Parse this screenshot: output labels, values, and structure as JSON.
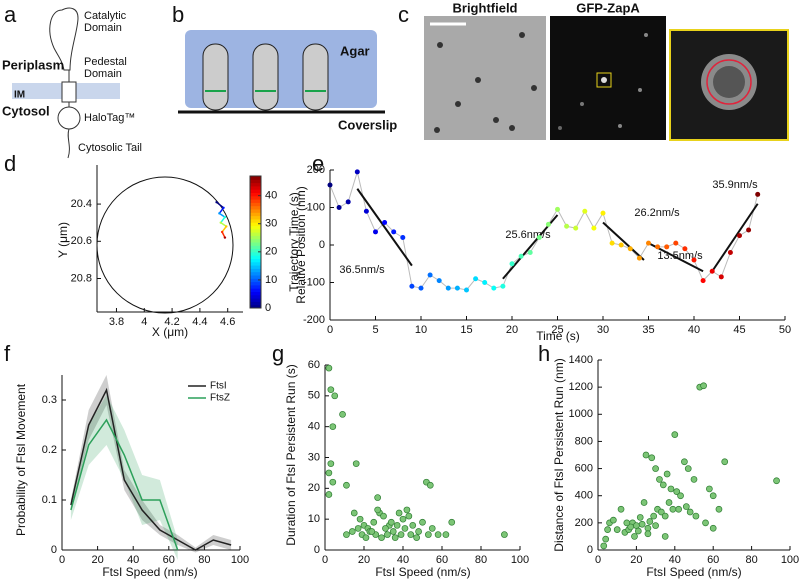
{
  "panel_labels": [
    "a",
    "b",
    "c",
    "d",
    "e",
    "f",
    "g",
    "h"
  ],
  "diagram_a": {
    "catalytic": [
      "Catalytic",
      "Domain"
    ],
    "periplasm": "Periplasm",
    "pedestal": [
      "Pedestal",
      "Domain"
    ],
    "im": "IM",
    "cytosol": "Cytosol",
    "halotag": "HaloTag™",
    "tail": "Cytosolic Tail"
  },
  "diagram_b": {
    "agar": "Agar",
    "coverslip": "Coverslip"
  },
  "images_c": {
    "brightfield": "Brightfield",
    "gfp": "GFP-ZapA"
  },
  "chart_data": [
    {
      "type": "trajectory",
      "x_label": "X (μm)",
      "y_label": "Y (μm)",
      "x": [
        4.52,
        4.57,
        4.54,
        4.58,
        4.55,
        4.59,
        4.56,
        4.58
      ],
      "y": [
        20.39,
        20.42,
        20.45,
        20.47,
        20.5,
        20.52,
        20.55,
        20.58
      ],
      "t": [
        0,
        7,
        13,
        19,
        26,
        32,
        39,
        45
      ],
      "xlim": [
        3.66,
        4.71
      ],
      "xticks": [
        3.8,
        4,
        4.2,
        4.4,
        4.6
      ],
      "ylim": [
        20.19,
        20.98
      ],
      "yticks": [
        20.4,
        20.6,
        20.8
      ],
      "yreverse": true,
      "colormap": "jet",
      "colorbar": {
        "label": "Trajectory Time (s)",
        "lim": [
          0,
          47
        ],
        "ticks": [
          0,
          10,
          20,
          30,
          40
        ]
      }
    },
    {
      "type": "timeseries",
      "x_label": "Time (s)",
      "y_label": "Relative Position (nm)",
      "x": [
        0,
        1,
        2,
        3,
        4,
        5,
        6,
        7,
        8,
        9,
        10,
        11,
        12,
        13,
        14,
        15,
        16,
        17,
        18,
        19,
        20,
        21,
        22,
        23,
        24,
        25,
        26,
        27,
        28,
        29,
        30,
        31,
        32,
        33,
        34,
        35,
        36,
        37,
        38,
        39,
        40,
        41,
        42,
        43,
        44,
        45,
        46,
        47
      ],
      "values": [
        160,
        100,
        115,
        195,
        90,
        35,
        60,
        35,
        20,
        -110,
        -115,
        -80,
        -95,
        -115,
        -115,
        -120,
        -90,
        -100,
        -115,
        -110,
        -50,
        -30,
        -20,
        20,
        55,
        95,
        50,
        45,
        90,
        45,
        85,
        5,
        0,
        -10,
        -35,
        5,
        -5,
        -5,
        5,
        -10,
        -40,
        -95,
        -70,
        -85,
        -20,
        25,
        40,
        135
      ],
      "colormap": "jet",
      "clim": [
        0,
        47
      ],
      "line_color": "#bbbbbb",
      "fits": [
        {
          "x1": 3,
          "y1": 150,
          "x2": 9,
          "y2": -55,
          "label": "36.5nm/s"
        },
        {
          "x1": 19,
          "y1": -90,
          "x2": 25,
          "y2": 80,
          "label": "25.6nm/s"
        },
        {
          "x1": 30,
          "y1": 60,
          "x2": 34.5,
          "y2": -40,
          "label": "26.2nm/s"
        },
        {
          "x1": 35,
          "y1": 5,
          "x2": 41,
          "y2": -70,
          "label": "13.5nm/s"
        },
        {
          "x1": 42,
          "y1": -70,
          "x2": 47,
          "y2": 110,
          "label": "35.9nm/s"
        }
      ],
      "xlim": [
        0,
        50
      ],
      "xticks": [
        0,
        5,
        10,
        15,
        20,
        25,
        30,
        35,
        40,
        45,
        50
      ],
      "ylim": [
        -200,
        200
      ],
      "yticks": [
        -200,
        -100,
        0,
        100,
        200
      ]
    },
    {
      "type": "line",
      "x_label": "FtsI Speed (nm/s)",
      "y_label": "Probability of FtsI Movement",
      "x": [
        5,
        15,
        25,
        35,
        45,
        55,
        65,
        75,
        85,
        95
      ],
      "series": [
        {
          "name": "FtsI",
          "color": "#222222",
          "values": [
            0.09,
            0.25,
            0.32,
            0.14,
            0.08,
            0.04,
            0.02,
            0,
            0.02,
            0.01
          ],
          "errors": [
            0.01,
            0.03,
            0.03,
            0.02,
            0.02,
            0.01,
            0.01,
            0.005,
            0.01,
            0.01
          ]
        },
        {
          "name": "FtsZ",
          "color": "#2ca05a",
          "values": [
            0.08,
            0.21,
            0.26,
            0.19,
            0.1,
            0.1,
            0,
            null,
            null,
            null
          ],
          "errors": [
            0.02,
            0.04,
            0.05,
            0.05,
            0.05,
            0.04,
            0.02,
            null,
            null,
            null
          ]
        }
      ],
      "xlim": [
        0,
        100
      ],
      "xticks": [
        0,
        20,
        40,
        60,
        80,
        100
      ],
      "ylim": [
        0,
        0.35
      ],
      "yticks": [
        0,
        0.1,
        0.2,
        0.3
      ],
      "legend": "upper right"
    },
    {
      "type": "scatter",
      "x_label": "FtsI Speed (nm/s)",
      "y_label": "Duration of FtsI Persistent Run (s)",
      "color": "#7cc576",
      "x": [
        2,
        3,
        5,
        4,
        9,
        3,
        2,
        4,
        2,
        11,
        16,
        27,
        52,
        54,
        15,
        18,
        20,
        22,
        25,
        28,
        30,
        33,
        35,
        38,
        40,
        42,
        45,
        48,
        50,
        55,
        58,
        62,
        65,
        92,
        19,
        21,
        23,
        26,
        29,
        31,
        34,
        36,
        39,
        41,
        44,
        47,
        53,
        17,
        24,
        32,
        37,
        43,
        27,
        11,
        14
      ],
      "values": [
        59,
        52,
        50,
        40,
        44,
        28,
        25,
        22,
        18,
        21,
        28,
        17,
        22,
        21,
        12,
        10,
        8,
        7,
        9,
        12,
        11,
        8,
        6,
        12,
        10,
        13,
        8,
        6,
        9,
        7,
        5,
        5,
        9,
        5,
        5,
        4,
        6,
        5,
        4,
        7,
        9,
        4,
        5,
        7,
        5,
        4,
        5,
        7,
        6,
        5,
        8,
        11,
        13,
        5,
        6
      ],
      "xlim": [
        0,
        100
      ],
      "xticks": [
        0,
        20,
        40,
        60,
        80,
        100
      ],
      "ylim": [
        0,
        60
      ],
      "yticks": [
        0,
        10,
        20,
        30,
        40,
        50,
        60
      ]
    },
    {
      "type": "scatter",
      "x_label": "FtsI Speed (nm/s)",
      "y_label": "Distance of FtsI Persistent Run (nm)",
      "color": "#7cc576",
      "x": [
        3,
        4,
        5,
        6,
        8,
        12,
        14,
        16,
        18,
        20,
        22,
        24,
        25,
        28,
        30,
        32,
        34,
        36,
        38,
        40,
        42,
        45,
        47,
        50,
        53,
        55,
        58,
        60,
        63,
        66,
        93,
        19,
        21,
        23,
        26,
        27,
        29,
        31,
        33,
        35,
        37,
        39,
        41,
        43,
        46,
        48,
        51,
        56,
        60,
        17,
        15,
        10,
        26,
        30,
        35
      ],
      "values": [
        30,
        80,
        150,
        200,
        220,
        300,
        130,
        150,
        200,
        180,
        240,
        350,
        700,
        680,
        600,
        520,
        480,
        560,
        450,
        850,
        300,
        650,
        600,
        520,
        1200,
        1210,
        450,
        400,
        300,
        650,
        510,
        100,
        140,
        190,
        160,
        210,
        250,
        300,
        280,
        250,
        350,
        300,
        430,
        400,
        320,
        280,
        250,
        200,
        160,
        170,
        200,
        150,
        120,
        180,
        100
      ],
      "xlim": [
        0,
        100
      ],
      "xticks": [
        0,
        20,
        40,
        60,
        80,
        100
      ],
      "ylim": [
        0,
        1400
      ],
      "yticks": [
        0,
        200,
        400,
        600,
        800,
        1000,
        1200,
        1400
      ]
    }
  ]
}
